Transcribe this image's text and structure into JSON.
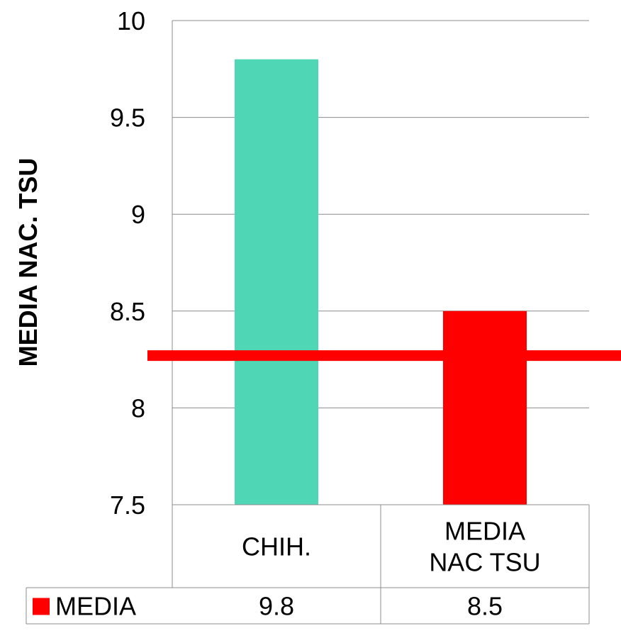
{
  "chart_data": {
    "type": "bar",
    "title": "",
    "ylabel": "MEDIA  NAC. TSU",
    "ylim": [
      7.5,
      10
    ],
    "yticks": [
      10,
      9.5,
      9,
      8.5,
      8,
      7.5
    ],
    "categories": [
      "CHIH.",
      "MEDIA\nNAC TSU"
    ],
    "series": [
      {
        "name": "MEDIA",
        "values": [
          9.8,
          8.5
        ],
        "bar_colors": [
          "#4FD6B4",
          "#FF0000"
        ]
      }
    ],
    "data_table": {
      "row_label": "MEDIA",
      "values": [
        "9.8",
        "8.5"
      ]
    },
    "reference_line": {
      "value": 8.27,
      "color": "#FF0000"
    },
    "grid": true,
    "legend": "data-table"
  },
  "colors": {
    "grid": "#8C8C8C",
    "text": "#000000",
    "legend_key": "#FF0000"
  }
}
